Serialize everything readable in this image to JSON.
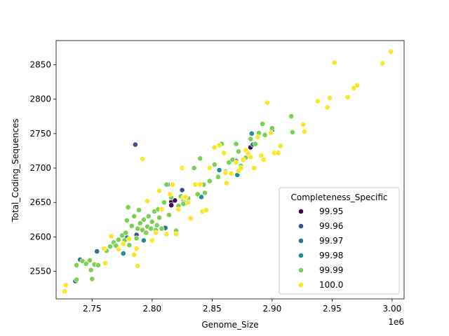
{
  "chart_data": {
    "type": "scatter",
    "title": "",
    "xlabel": "Genome_Size",
    "ylabel": "Total_Coding_Sequences",
    "x_offset_label": "1e6",
    "xlim": [
      2720000,
      3010000
    ],
    "ylim": [
      2510,
      2885
    ],
    "x_ticks": [
      2750000,
      2800000,
      2850000,
      2900000,
      2950000,
      3000000
    ],
    "x_tick_labels": [
      "2.75",
      "2.80",
      "2.85",
      "2.90",
      "2.95",
      "3.00"
    ],
    "y_ticks": [
      2550,
      2600,
      2650,
      2700,
      2750,
      2800,
      2850
    ],
    "y_tick_labels": [
      "2550",
      "2600",
      "2650",
      "2700",
      "2750",
      "2800",
      "2850"
    ],
    "grid": false,
    "legend": {
      "title": "Completeness_Specific",
      "placement": "lower-right",
      "entries": [
        {
          "label": "99.95",
          "color": "#440154"
        },
        {
          "label": "99.96",
          "color": "#3b528b"
        },
        {
          "label": "99.97",
          "color": "#2c728e"
        },
        {
          "label": "99.98",
          "color": "#21918c"
        },
        {
          "label": "99.99",
          "color": "#7ad151"
        },
        {
          "label": "100.0",
          "color": "#fde725"
        }
      ]
    },
    "series": [
      {
        "name": "99.95",
        "color": "#440154",
        "points": [
          [
            2816000,
            2651
          ],
          [
            2816000,
            2646
          ],
          [
            2882000,
            2730
          ],
          [
            2819000,
            2653
          ]
        ]
      },
      {
        "name": "99.96",
        "color": "#3b528b",
        "points": [
          [
            2786000,
            2734
          ],
          [
            2736000,
            2536
          ],
          [
            2825000,
            2668
          ],
          [
            2900000,
            2755
          ],
          [
            2787000,
            2603
          ]
        ]
      },
      {
        "name": "99.97",
        "color": "#2c728e",
        "points": [
          [
            2754000,
            2579
          ],
          [
            2740000,
            2567
          ],
          [
            2769000,
            2589
          ],
          [
            2811000,
            2613
          ],
          [
            2870000,
            2710
          ],
          [
            2884000,
            2734
          ]
        ]
      },
      {
        "name": "99.98",
        "color": "#21918c",
        "points": [
          [
            2813000,
            2676
          ],
          [
            2883000,
            2750
          ],
          [
            2776000,
            2576
          ],
          [
            2793000,
            2595
          ],
          [
            2856000,
            2697
          ],
          [
            2841000,
            2658
          ],
          [
            2871000,
            2690
          ],
          [
            2779000,
            2599
          ]
        ]
      },
      {
        "name": "99.99",
        "color": "#7ad151",
        "points": [
          [
            2737000,
            2559
          ],
          [
            2737000,
            2538
          ],
          [
            2742000,
            2565
          ],
          [
            2745000,
            2561
          ],
          [
            2748000,
            2566
          ],
          [
            2749000,
            2552
          ],
          [
            2750000,
            2539
          ],
          [
            2752000,
            2560
          ],
          [
            2755000,
            2559
          ],
          [
            2762000,
            2580
          ],
          [
            2765000,
            2586
          ],
          [
            2768000,
            2592
          ],
          [
            2770000,
            2587
          ],
          [
            2772000,
            2596
          ],
          [
            2775000,
            2602
          ],
          [
            2777000,
            2595
          ],
          [
            2778000,
            2606
          ],
          [
            2779000,
            2624
          ],
          [
            2780000,
            2643
          ],
          [
            2781000,
            2588
          ],
          [
            2783000,
            2616
          ],
          [
            2785000,
            2630
          ],
          [
            2787000,
            2598
          ],
          [
            2788000,
            2612
          ],
          [
            2789000,
            2639
          ],
          [
            2790000,
            2620
          ],
          [
            2792000,
            2610
          ],
          [
            2793000,
            2625
          ],
          [
            2795000,
            2606
          ],
          [
            2796000,
            2615
          ],
          [
            2797000,
            2630
          ],
          [
            2799000,
            2612
          ],
          [
            2800000,
            2622
          ],
          [
            2802000,
            2637
          ],
          [
            2803000,
            2610
          ],
          [
            2804000,
            2617
          ],
          [
            2805000,
            2640
          ],
          [
            2806000,
            2628
          ],
          [
            2808000,
            2612
          ],
          [
            2810000,
            2650
          ],
          [
            2812000,
            2676
          ],
          [
            2814000,
            2632
          ],
          [
            2816000,
            2657
          ],
          [
            2820000,
            2609
          ],
          [
            2822000,
            2645
          ],
          [
            2824000,
            2659
          ],
          [
            2826000,
            2654
          ],
          [
            2828000,
            2649
          ],
          [
            2830000,
            2656
          ],
          [
            2835000,
            2700
          ],
          [
            2838000,
            2662
          ],
          [
            2840000,
            2714
          ],
          [
            2842000,
            2676
          ],
          [
            2844000,
            2664
          ],
          [
            2848000,
            2681
          ],
          [
            2852000,
            2705
          ],
          [
            2855000,
            2687
          ],
          [
            2858000,
            2735
          ],
          [
            2864000,
            2708
          ],
          [
            2867000,
            2712
          ],
          [
            2870000,
            2735
          ],
          [
            2872000,
            2724
          ],
          [
            2874000,
            2703
          ],
          [
            2878000,
            2715
          ],
          [
            2882000,
            2742
          ],
          [
            2886000,
            2735
          ],
          [
            2889000,
            2751
          ],
          [
            2892000,
            2764
          ],
          [
            2894000,
            2748
          ],
          [
            2900000,
            2758
          ],
          [
            2916000,
            2775
          ],
          [
            2917000,
            2752
          ],
          [
            2843000,
            2676
          ],
          [
            2861000,
            2695
          ],
          [
            2826000,
            2648
          ]
        ]
      },
      {
        "name": "100.0",
        "color": "#fde725",
        "points": [
          [
            2727000,
            2521
          ],
          [
            2728000,
            2530
          ],
          [
            2760000,
            2583
          ],
          [
            2761000,
            2562
          ],
          [
            2766000,
            2601
          ],
          [
            2772000,
            2582
          ],
          [
            2776000,
            2590
          ],
          [
            2781000,
            2597
          ],
          [
            2785000,
            2574
          ],
          [
            2787000,
            2583
          ],
          [
            2788000,
            2558
          ],
          [
            2792000,
            2713
          ],
          [
            2796000,
            2652
          ],
          [
            2800000,
            2595
          ],
          [
            2803000,
            2606
          ],
          [
            2806000,
            2667
          ],
          [
            2808000,
            2640
          ],
          [
            2812000,
            2604
          ],
          [
            2815000,
            2662
          ],
          [
            2817000,
            2676
          ],
          [
            2820000,
            2604
          ],
          [
            2822000,
            2640
          ],
          [
            2825000,
            2700
          ],
          [
            2826000,
            2657
          ],
          [
            2828000,
            2658
          ],
          [
            2830000,
            2650
          ],
          [
            2832000,
            2627
          ],
          [
            2836000,
            2676
          ],
          [
            2840000,
            2676
          ],
          [
            2842000,
            2637
          ],
          [
            2845000,
            2639
          ],
          [
            2848000,
            2700
          ],
          [
            2852000,
            2730
          ],
          [
            2856000,
            2733
          ],
          [
            2860000,
            2722
          ],
          [
            2861000,
            2693
          ],
          [
            2862000,
            2678
          ],
          [
            2866000,
            2692
          ],
          [
            2870000,
            2708
          ],
          [
            2872000,
            2696
          ],
          [
            2874000,
            2700
          ],
          [
            2876000,
            2712
          ],
          [
            2878000,
            2726
          ],
          [
            2880000,
            2721
          ],
          [
            2882000,
            2716
          ],
          [
            2885000,
            2700
          ],
          [
            2888000,
            2745
          ],
          [
            2891000,
            2718
          ],
          [
            2893000,
            2712
          ],
          [
            2896000,
            2795
          ],
          [
            2899000,
            2751
          ],
          [
            2902000,
            2722
          ],
          [
            2905000,
            2722
          ],
          [
            2907000,
            2732
          ],
          [
            2926000,
            2763
          ],
          [
            2927000,
            2753
          ],
          [
            2938000,
            2797
          ],
          [
            2946000,
            2788
          ],
          [
            2948000,
            2802
          ],
          [
            2952000,
            2853
          ],
          [
            2963000,
            2803
          ],
          [
            2968000,
            2816
          ],
          [
            2971000,
            2820
          ],
          [
            2992000,
            2852
          ],
          [
            2999000,
            2869
          ]
        ]
      }
    ]
  }
}
